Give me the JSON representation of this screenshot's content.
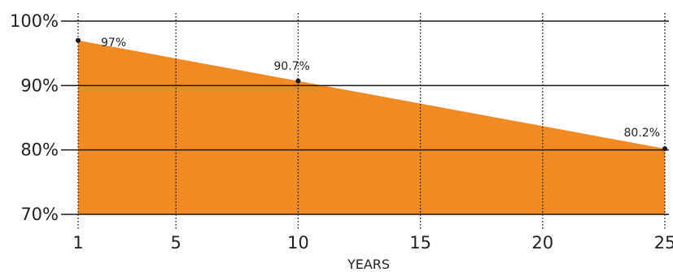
{
  "chart_data": {
    "type": "area",
    "title": "",
    "xlabel": "YEARS",
    "ylabel": "",
    "x_ticks": [
      1,
      5,
      10,
      15,
      20,
      25
    ],
    "x_tick_labels": [
      "1",
      "5",
      "10",
      "15",
      "20",
      "25"
    ],
    "y_ticks": [
      70,
      80,
      90,
      100
    ],
    "y_tick_labels": [
      "70%",
      "80%",
      "90%",
      "100%"
    ],
    "xlim": [
      1,
      25
    ],
    "ylim": [
      70,
      100
    ],
    "grid": true,
    "series": [
      {
        "x": [
          1,
          10,
          25
        ],
        "values": [
          97,
          90.7,
          80.2
        ],
        "labels": [
          "97%",
          "90.7%",
          "80.2%"
        ],
        "color": "#F28A24"
      }
    ]
  }
}
